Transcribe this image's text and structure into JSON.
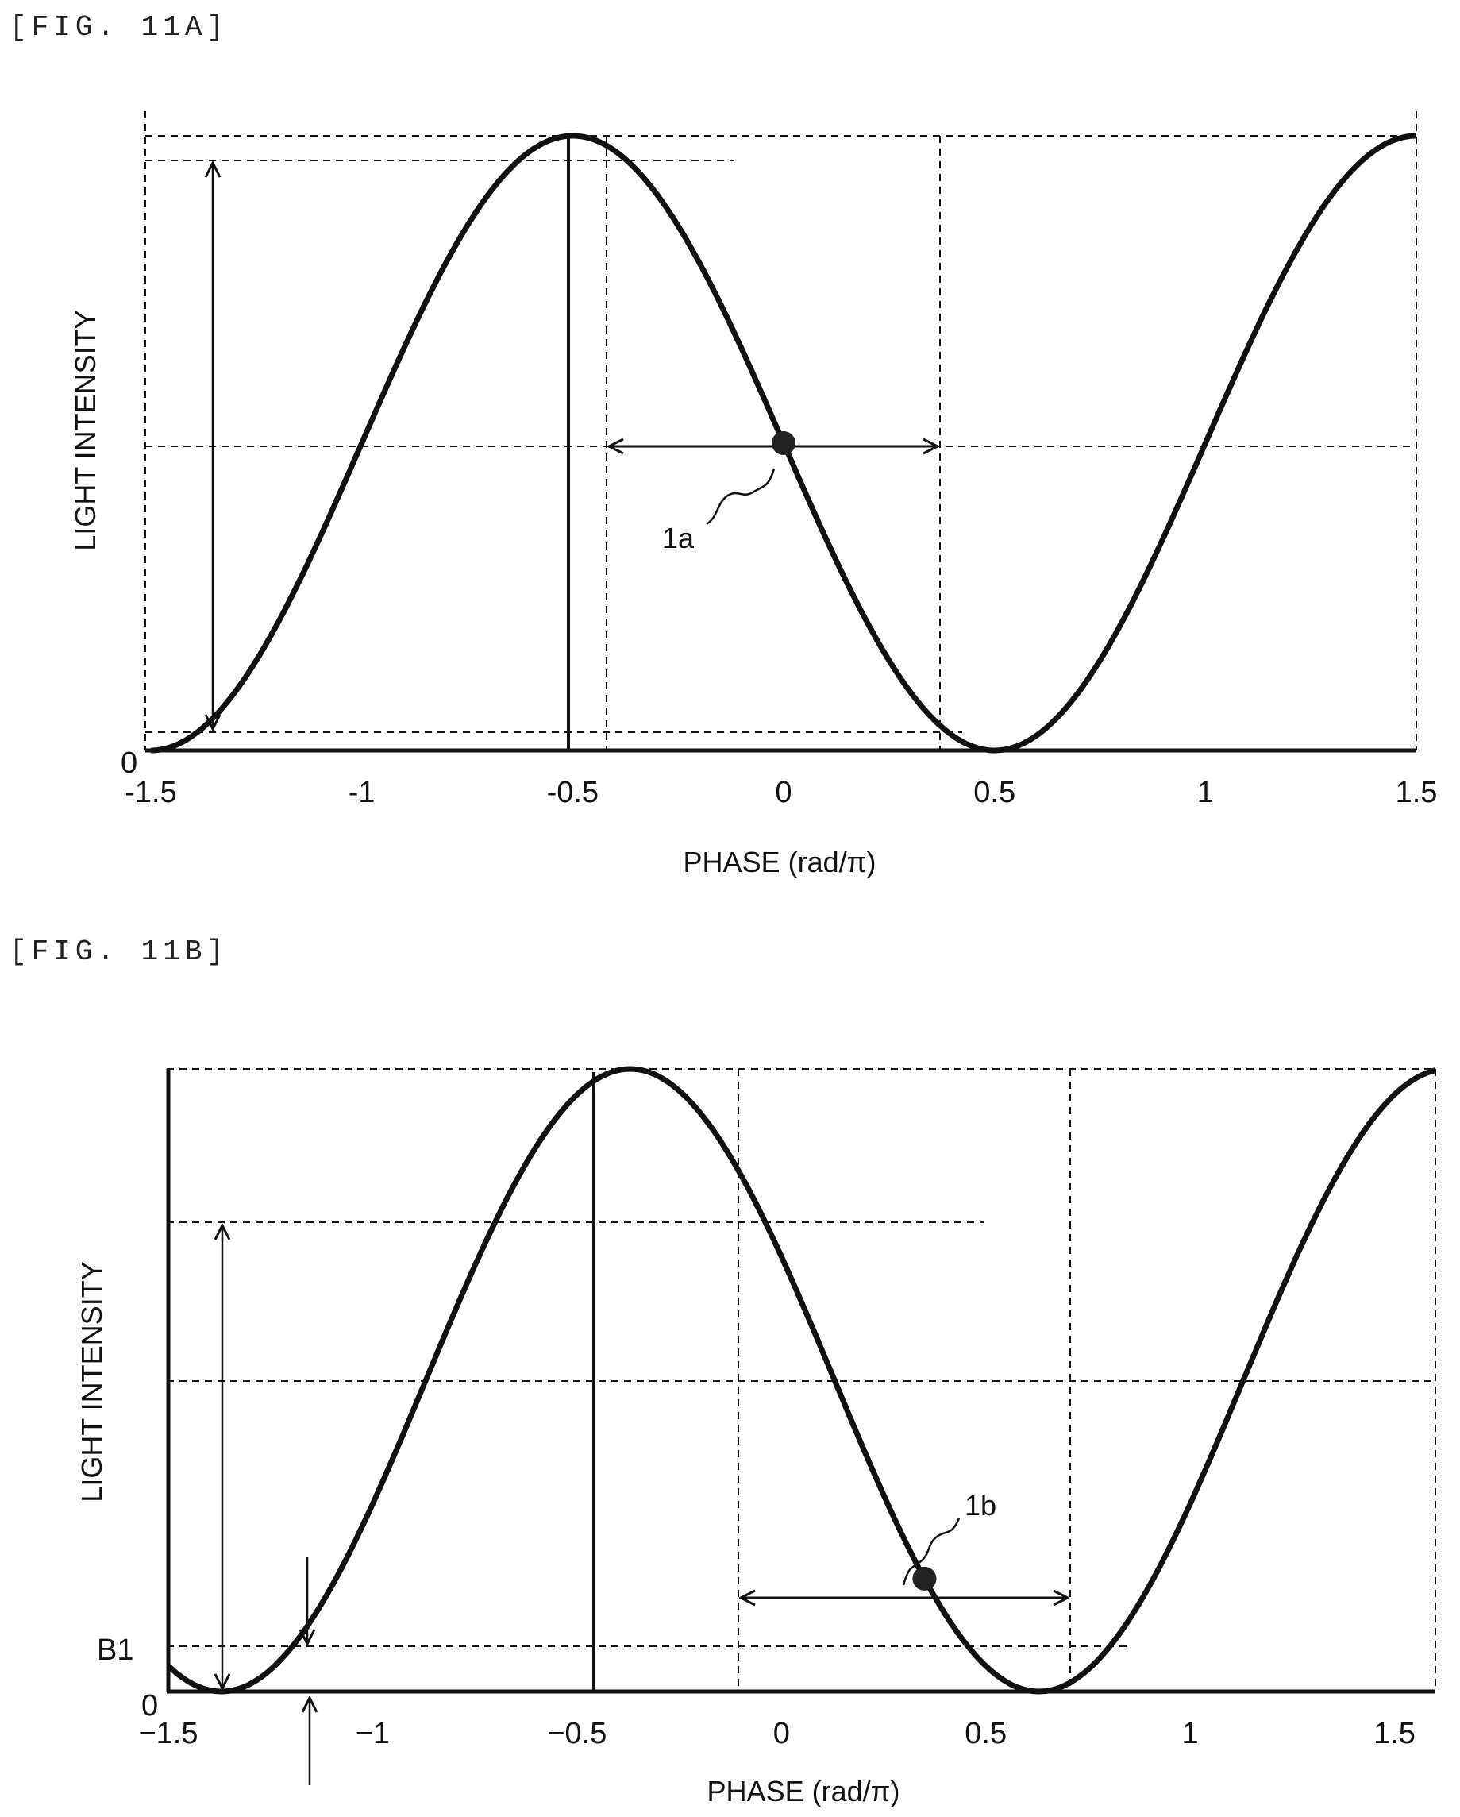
{
  "figures": {
    "a": {
      "label": "[FIG. 11A]"
    },
    "b": {
      "label": "[FIG. 11B]"
    }
  },
  "colors": {
    "curve": "#111111",
    "grid": "#111111",
    "background": "#ffffff"
  },
  "chart_data": [
    {
      "type": "line",
      "xlabel": "PHASE (rad/π)",
      "ylabel": "LIGHT INTENSITY",
      "xlim": [
        -1.5,
        1.5
      ],
      "ylim": [
        0,
        1
      ],
      "xticks": [
        "-1.5",
        "-1",
        "-0.5",
        "0",
        "0.5",
        "1",
        "1.5"
      ],
      "yticks": [
        "0"
      ],
      "series": [
        {
          "function": "cos^2 intensity",
          "x": [
            -1.5,
            -1.25,
            -1.0,
            -0.75,
            -0.5,
            -0.25,
            0,
            0.25,
            0.5,
            0.75,
            1.0,
            1.25,
            1.5
          ],
          "y": [
            0.0,
            0.15,
            0.5,
            0.85,
            1.0,
            0.85,
            0.5,
            0.15,
            0.0,
            0.15,
            0.5,
            0.85,
            1.0
          ]
        }
      ],
      "annotations": [
        {
          "text": "1a",
          "x": 0,
          "y": 0.5
        }
      ],
      "grid": "dashed reference lines"
    },
    {
      "type": "line",
      "xlabel": "PHASE (rad/π)",
      "ylabel": "LIGHT INTENSITY",
      "xlim": [
        -1.5,
        1.6
      ],
      "ylim": [
        0,
        1
      ],
      "xticks": [
        "−1.5",
        "−1",
        "−0.5",
        "0",
        "0.5",
        "1",
        "1.5"
      ],
      "yticks": [
        "0",
        "B1"
      ],
      "series": [
        {
          "function": "cos^2 intensity, shifted",
          "x": [
            -1.5,
            -1.25,
            -1.0,
            -0.75,
            -0.5,
            -0.25,
            0,
            0.25,
            0.5,
            0.75,
            1.0,
            1.25,
            1.5
          ],
          "y": [
            0.01,
            0.14,
            0.39,
            0.68,
            0.92,
            0.99,
            0.83,
            0.41,
            0.06,
            0.05,
            0.39,
            0.83,
            0.99
          ]
        }
      ],
      "annotations": [
        {
          "text": "1b",
          "x": 0.35,
          "y": 0.15
        }
      ],
      "grid": "dashed reference lines"
    }
  ]
}
